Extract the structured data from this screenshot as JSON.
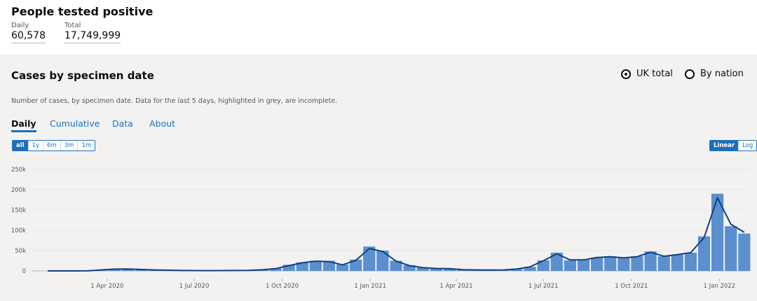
{
  "header": {
    "title": "People tested positive",
    "daily_label": "Daily",
    "daily_value": "60,578",
    "total_label": "Total",
    "total_value": "17,749,999"
  },
  "card": {
    "title": "Cases by specimen date",
    "radios": [
      "UK total",
      "By nation"
    ],
    "note": "Number of cases, by specimen date. Data for the last 5 days, highlighted in grey, are incomplete.",
    "tabs": [
      "Daily",
      "Cumulative",
      "Data",
      "About"
    ],
    "ranges": [
      "all",
      "1y",
      "6m",
      "3m",
      "1m"
    ],
    "scales": [
      "Linear",
      "Log"
    ]
  },
  "chart_data": {
    "type": "bar",
    "x": [
      "2020-01-30",
      "2020-02-13",
      "2020-02-27",
      "2020-03-12",
      "2020-03-26",
      "2020-04-09",
      "2020-04-23",
      "2020-05-07",
      "2020-05-21",
      "2020-06-04",
      "2020-06-18",
      "2020-07-02",
      "2020-07-16",
      "2020-07-30",
      "2020-08-13",
      "2020-08-27",
      "2020-09-10",
      "2020-09-24",
      "2020-10-08",
      "2020-10-22",
      "2020-11-05",
      "2020-11-19",
      "2020-12-03",
      "2020-12-17",
      "2020-12-31",
      "2021-01-14",
      "2021-01-28",
      "2021-02-11",
      "2021-02-25",
      "2021-03-11",
      "2021-03-25",
      "2021-04-08",
      "2021-04-22",
      "2021-05-06",
      "2021-05-20",
      "2021-06-03",
      "2021-06-17",
      "2021-07-01",
      "2021-07-15",
      "2021-07-29",
      "2021-08-12",
      "2021-08-26",
      "2021-09-09",
      "2021-09-23",
      "2021-10-07",
      "2021-10-21",
      "2021-11-04",
      "2021-11-18",
      "2021-12-02",
      "2021-12-16",
      "2021-12-30",
      "2022-01-13",
      "2022-01-27"
    ],
    "series": [
      {
        "type": "bar",
        "color": "#5b8fcf",
        "values": [
          0,
          0,
          20,
          300,
          3000,
          5000,
          5000,
          4000,
          2500,
          1800,
          1200,
          800,
          700,
          800,
          1100,
          1300,
          3000,
          6000,
          15000,
          21000,
          25000,
          25000,
          16000,
          28000,
          60000,
          50000,
          25000,
          14000,
          8000,
          6000,
          5500,
          3000,
          2500,
          2200,
          2500,
          4500,
          10000,
          26000,
          45000,
          26000,
          28000,
          33000,
          36000,
          32000,
          36000,
          48000,
          36000,
          40000,
          45000,
          85000,
          190000,
          110000,
          92000
        ]
      },
      {
        "type": "line",
        "color": "#12407f",
        "values": [
          0,
          0,
          0,
          200,
          2500,
          4500,
          4800,
          3500,
          2500,
          1700,
          1100,
          800,
          700,
          800,
          1000,
          1200,
          2800,
          5500,
          13000,
          20000,
          24000,
          23000,
          15000,
          26000,
          55000,
          48000,
          24000,
          13000,
          8000,
          6000,
          5500,
          3000,
          2500,
          2200,
          2500,
          4500,
          10000,
          25000,
          42000,
          27000,
          27000,
          33000,
          35000,
          32000,
          35000,
          46000,
          36000,
          40000,
          45000,
          82000,
          180000,
          115000,
          95000
        ]
      }
    ],
    "xlim": [
      "2020-01-13",
      "2022-02-02"
    ],
    "xticks": [
      {
        "value": "2020-04-01",
        "label": "1 Apr 2020"
      },
      {
        "value": "2020-07-01",
        "label": "1 Jul 2020"
      },
      {
        "value": "2020-10-01",
        "label": "1 Oct 2020"
      },
      {
        "value": "2021-01-01",
        "label": "1 Jan 2021"
      },
      {
        "value": "2021-04-01",
        "label": "1 Apr 2021"
      },
      {
        "value": "2021-07-01",
        "label": "1 Jul 2021"
      },
      {
        "value": "2021-10-01",
        "label": "1 Oct 2021"
      },
      {
        "value": "2022-01-01",
        "label": "1 Jan 2022"
      }
    ],
    "ylim": [
      0,
      250000
    ],
    "yticks": [
      0,
      {
        "value": 50000,
        "label": "50k"
      },
      {
        "value": 100000,
        "label": "100k"
      },
      {
        "value": 150000,
        "label": "150k"
      },
      {
        "value": 200000,
        "label": "200k"
      },
      {
        "value": 250000,
        "label": "250k"
      }
    ],
    "grid": true
  }
}
